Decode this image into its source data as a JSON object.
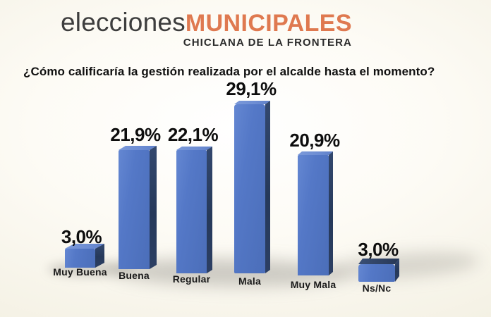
{
  "header": {
    "brand_light": "elecciones",
    "brand_bold": "MUNICIPALES",
    "subtitle": "CHICLANA DE LA FRONTERA"
  },
  "question": "¿Cómo calificaría la gestión realizada por el alcalde hasta el momento?",
  "colors": {
    "brand_orange": "#df7950",
    "bar_front": "#5478c7",
    "bar_side": "#26395a",
    "bar_top": "#6d8dd3",
    "bar_top_dark": "#2d3f60",
    "background_edge": "#f2efe1",
    "text": "#101010"
  },
  "chart_data": {
    "type": "bar",
    "style": "3d-bars",
    "title": "¿Cómo calificaría la gestión realizada por el alcalde hasta el momento?",
    "categories": [
      "Muy Buena",
      "Buena",
      "Regular",
      "Mala",
      "Muy Mala",
      "Ns/Nc"
    ],
    "values": [
      3.0,
      21.9,
      22.1,
      29.1,
      20.9,
      3.0
    ],
    "value_labels": [
      "3,0%",
      "21,9%",
      "22,1%",
      "29,1%",
      "20,9%",
      "3,0%"
    ],
    "unit": "%",
    "xlabel": "",
    "ylabel": "",
    "ylim": [
      0,
      30
    ],
    "grid": false,
    "legend": false
  }
}
